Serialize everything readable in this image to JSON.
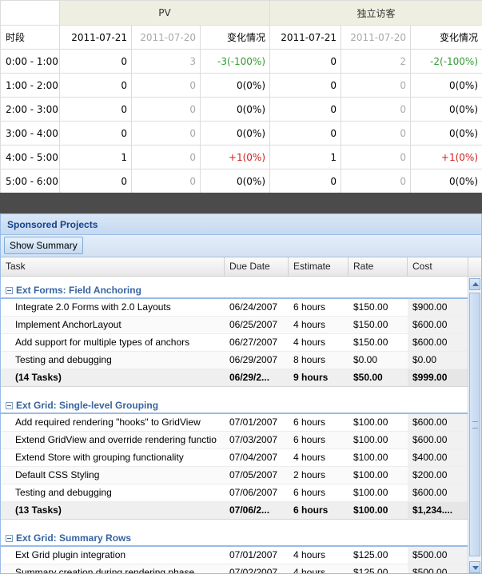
{
  "stats": {
    "group_pv": "PV",
    "group_uv": "独立访客",
    "col_period": "时段",
    "col_date1": "2011-07-21",
    "col_date2": "2011-07-20",
    "col_change": "变化情况",
    "rows": [
      {
        "period": "0:00 - 1:00",
        "pv1": "0",
        "pv2": "3",
        "pvc": "-3(-100%)",
        "pvc_tone": "green",
        "uv1": "0",
        "uv2": "2",
        "uvc": "-2(-100%)",
        "uvc_tone": "green"
      },
      {
        "period": "1:00 - 2:00",
        "pv1": "0",
        "pv2": "0",
        "pvc": "0(0%)",
        "pvc_tone": "black",
        "uv1": "0",
        "uv2": "0",
        "uvc": "0(0%)",
        "uvc_tone": "black"
      },
      {
        "period": "2:00 - 3:00",
        "pv1": "0",
        "pv2": "0",
        "pvc": "0(0%)",
        "pvc_tone": "black",
        "uv1": "0",
        "uv2": "0",
        "uvc": "0(0%)",
        "uvc_tone": "black"
      },
      {
        "period": "3:00 - 4:00",
        "pv1": "0",
        "pv2": "0",
        "pvc": "0(0%)",
        "pvc_tone": "black",
        "uv1": "0",
        "uv2": "0",
        "uvc": "0(0%)",
        "uvc_tone": "black"
      },
      {
        "period": "4:00 - 5:00",
        "pv1": "1",
        "pv2": "0",
        "pvc": "+1(0%)",
        "pvc_tone": "red",
        "uv1": "1",
        "uv2": "0",
        "uvc": "+1(0%)",
        "uvc_tone": "red"
      },
      {
        "period": "5:00 - 6:00",
        "pv1": "0",
        "pv2": "0",
        "pvc": "0(0%)",
        "pvc_tone": "black",
        "uv1": "0",
        "uv2": "0",
        "uvc": "0(0%)",
        "uvc_tone": "black"
      }
    ],
    "colors": {
      "green": "#2e9a2e",
      "red": "#d21c1c",
      "header_bg": "#efefe1"
    }
  },
  "panel": {
    "title": "Sponsored Projects",
    "show_summary": "Show Summary",
    "columns": [
      "Task",
      "Due Date",
      "Estimate",
      "Rate",
      "Cost"
    ],
    "groups": [
      {
        "name": "Ext Forms: Field Anchoring",
        "rows": [
          {
            "task": "Integrate 2.0 Forms with 2.0 Layouts",
            "due": "06/24/2007",
            "est": "6 hours",
            "rate": "$150.00",
            "cost": "$900.00"
          },
          {
            "task": "Implement AnchorLayout",
            "due": "06/25/2007",
            "est": "4 hours",
            "rate": "$150.00",
            "cost": "$600.00"
          },
          {
            "task": "Add support for multiple types of anchors",
            "due": "06/27/2007",
            "est": "4 hours",
            "rate": "$150.00",
            "cost": "$600.00"
          },
          {
            "task": "Testing and debugging",
            "due": "06/29/2007",
            "est": "8 hours",
            "rate": "$0.00",
            "cost": "$0.00"
          }
        ],
        "summary": {
          "task": "(14 Tasks)",
          "due": "06/29/2...",
          "est": "9 hours",
          "rate": "$50.00",
          "cost": "$999.00"
        }
      },
      {
        "name": "Ext Grid: Single-level Grouping",
        "rows": [
          {
            "task": "Add required rendering \"hooks\" to GridView",
            "due": "07/01/2007",
            "est": "6 hours",
            "rate": "$100.00",
            "cost": "$600.00"
          },
          {
            "task": "Extend GridView and override rendering functio",
            "due": "07/03/2007",
            "est": "6 hours",
            "rate": "$100.00",
            "cost": "$600.00"
          },
          {
            "task": "Extend Store with grouping functionality",
            "due": "07/04/2007",
            "est": "4 hours",
            "rate": "$100.00",
            "cost": "$400.00"
          },
          {
            "task": "Default CSS Styling",
            "due": "07/05/2007",
            "est": "2 hours",
            "rate": "$100.00",
            "cost": "$200.00"
          },
          {
            "task": "Testing and debugging",
            "due": "07/06/2007",
            "est": "6 hours",
            "rate": "$100.00",
            "cost": "$600.00"
          }
        ],
        "summary": {
          "task": "(13 Tasks)",
          "due": "07/06/2...",
          "est": "6 hours",
          "rate": "$100.00",
          "cost": "$1,234...."
        }
      },
      {
        "name": "Ext Grid: Summary Rows",
        "rows": [
          {
            "task": "Ext Grid plugin integration",
            "due": "07/01/2007",
            "est": "4 hours",
            "rate": "$125.00",
            "cost": "$500.00"
          },
          {
            "task": "Summary creation during rendering phase",
            "due": "07/02/2007",
            "est": "4 hours",
            "rate": "$125.00",
            "cost": "$500.00"
          }
        ],
        "summary": null
      }
    ],
    "colors": {
      "title": "#15428b",
      "group": "#3764a0"
    }
  }
}
